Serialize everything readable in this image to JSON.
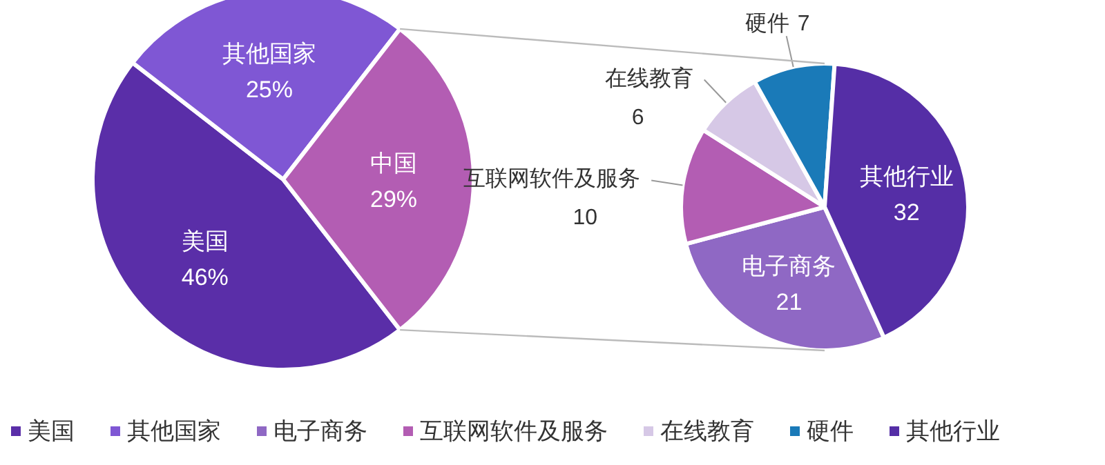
{
  "chart_data": [
    {
      "type": "pie",
      "categories": [
        "美国",
        "其他国家",
        "中国"
      ],
      "values": [
        46,
        25,
        29
      ],
      "colors": [
        "#5a2ea8",
        "#7f57d4",
        "#b35db3"
      ],
      "value_labels": [
        "46%",
        "25%",
        "29%"
      ],
      "legend": "bottom"
    },
    {
      "type": "pie",
      "categories": [
        "电子商务",
        "互联网软件及服务",
        "在线教育",
        "硬件",
        "其他行业"
      ],
      "values": [
        21,
        10,
        6,
        7,
        32
      ],
      "colors": [
        "#8f68c4",
        "#b35db3",
        "#d6c8e6",
        "#1a7ab8",
        "#552ea6"
      ],
      "data_labels": true,
      "legend": "bottom"
    }
  ]
}
